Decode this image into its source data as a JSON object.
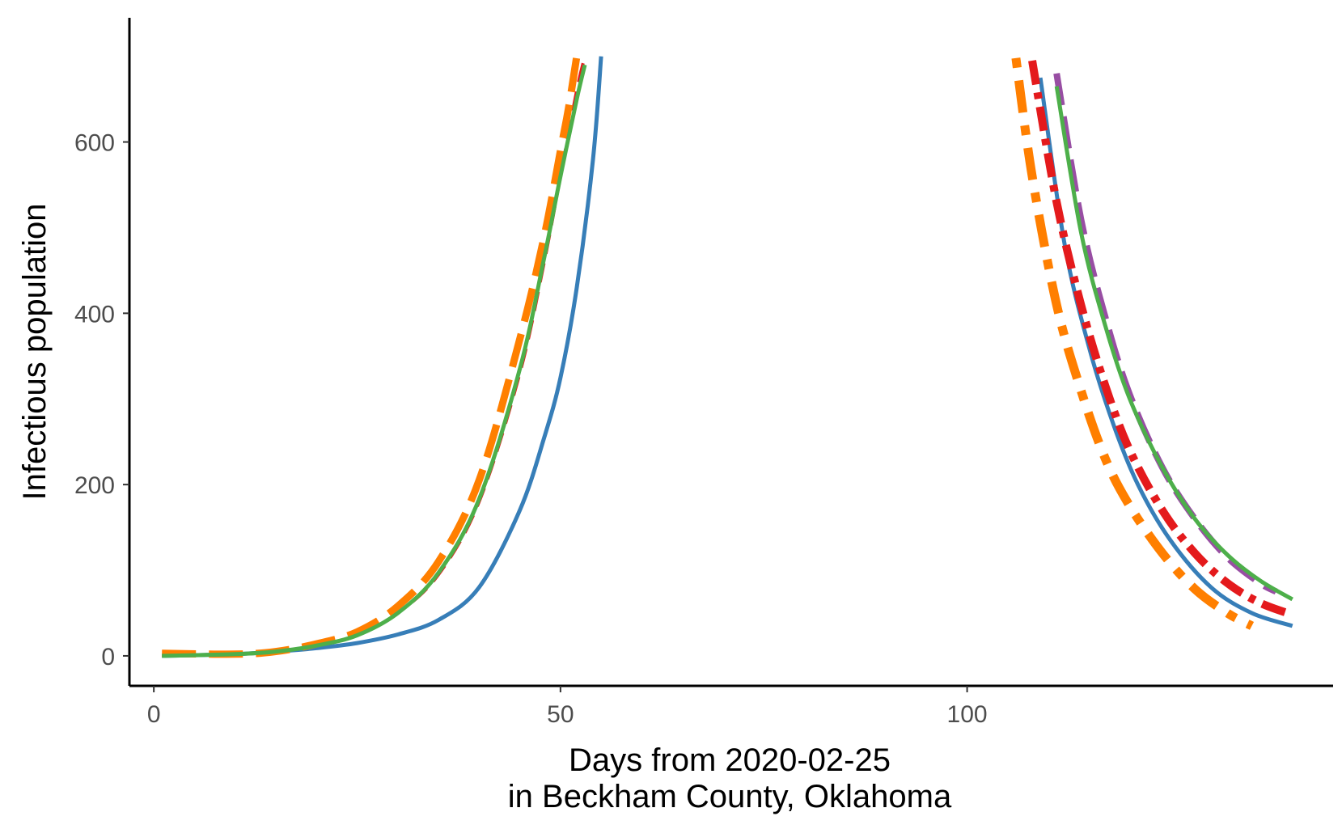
{
  "chart_data": {
    "type": "line",
    "title": "",
    "xlabel_lines": [
      "Days from 2020-02-25",
      "in Beckham County, Oklahoma"
    ],
    "ylabel": "Infectious population",
    "xlim": [
      -3,
      145
    ],
    "ylim": [
      -35,
      745
    ],
    "x_ticks": [
      0,
      50,
      100
    ],
    "x_tick_labels": [
      "0",
      "50",
      "100"
    ],
    "y_ticks": [
      0,
      200,
      400,
      600
    ],
    "y_tick_labels": [
      "0",
      "200",
      "400",
      "600"
    ],
    "grid": false,
    "legend": "none",
    "series": [
      {
        "color": "#377eb8",
        "dash": "solid",
        "width": 5,
        "segments": [
          {
            "x": [
              1,
              10,
              15,
              20,
              25,
              30,
              35,
              40,
              45,
              48,
              50,
              52,
              54,
              55
            ],
            "y": [
              0,
              2,
              5,
              9,
              15,
              25,
              42,
              80,
              170,
              255,
              325,
              430,
              580,
              700
            ]
          },
          {
            "x": [
              109,
              112,
              115,
              118,
              121,
              125,
              130,
              135,
              140
            ],
            "y": [
              675,
              480,
              360,
              270,
              200,
              135,
              80,
              50,
              35
            ]
          }
        ]
      },
      {
        "color": "#e41a1c",
        "dash": "24 12",
        "width": 4,
        "segments": [
          {
            "x": [
              1,
              10,
              15,
              20,
              25,
              30,
              35,
              40,
              45,
              48,
              50,
              52,
              53
            ],
            "y": [
              0,
              2,
              5,
              12,
              24,
              50,
              95,
              180,
              330,
              460,
              560,
              660,
              700
            ]
          }
        ]
      },
      {
        "color": "#e41a1c",
        "dash": "30 10 8 10",
        "width": 10,
        "segments": [
          {
            "x": [
              108,
              111,
              114,
              117,
              120,
              124,
              128,
              132,
              136,
              140
            ],
            "y": [
              695,
              530,
              410,
              315,
              240,
              170,
              120,
              85,
              62,
              48
            ]
          }
        ]
      },
      {
        "color": "#984ea3",
        "dash": "40 14",
        "width": 8,
        "segments": [
          {
            "x": [
              111,
              114,
              117,
              120,
              124,
              128,
              132,
              136,
              138
            ],
            "y": [
              680,
              510,
              395,
              305,
              220,
              160,
              115,
              85,
              75
            ]
          }
        ]
      },
      {
        "color": "#ff7f00",
        "dash": "42 16",
        "width": 9,
        "segments": [
          {
            "x": [
              1,
              10,
              15,
              20,
              25,
              30,
              35,
              40,
              45,
              48,
              50,
              51,
              52
            ],
            "y": [
              3,
              2,
              5,
              14,
              28,
              58,
              110,
              205,
              370,
              490,
              590,
              640,
              700
            ]
          }
        ]
      },
      {
        "color": "#ff7f00",
        "dash": "12 16 40 16",
        "width": 11,
        "segments": [
          {
            "x": [
              106,
              108,
              111,
              114,
              117,
              120,
              124,
              128,
              132,
              135
            ],
            "y": [
              698,
              560,
              410,
              310,
              230,
              175,
              120,
              78,
              50,
              35
            ]
          }
        ]
      },
      {
        "color": "#4daf4a",
        "dash": "solid",
        "width": 5,
        "segments": [
          {
            "x": [
              1,
              10,
              15,
              20,
              25,
              30,
              35,
              40,
              45,
              48,
              50,
              52,
              53
            ],
            "y": [
              0,
              2,
              5,
              12,
              24,
              50,
              97,
              183,
              335,
              465,
              560,
              650,
              690
            ]
          },
          {
            "x": [
              111,
              114,
              117,
              120,
              124,
              128,
              132,
              136,
              140
            ],
            "y": [
              665,
              495,
              385,
              300,
              220,
              160,
              118,
              88,
              66
            ]
          }
        ]
      }
    ]
  }
}
